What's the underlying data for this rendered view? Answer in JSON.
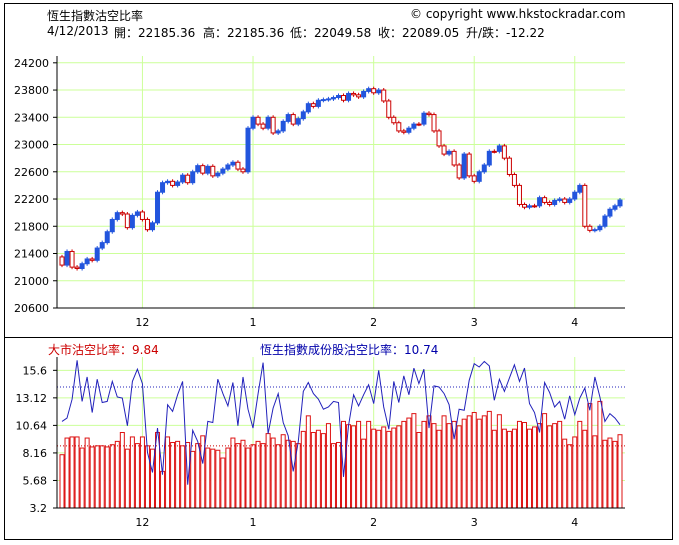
{
  "header": {
    "title": "恆生指數沽空比率",
    "copyright": "© copyright www.hkstockradar.com",
    "date": "4/12/2013",
    "open": "開：22185.36",
    "high": "高：22185.36",
    "low": "低：22049.58",
    "close": "收：22089.05",
    "change": "升/跌：-12.22"
  },
  "subheader": {
    "market_label": "大市沽空比率：9.84",
    "hsi_label": "恆生指數成份股沽空比率：10.74"
  },
  "colors": {
    "up": "#cc0000",
    "down": "#2255dd",
    "bar": "#dd1111",
    "line": "#2222bb",
    "grid": "#ccff99"
  },
  "chart_data": [
    {
      "type": "candlestick",
      "yticks": [
        20600,
        21000,
        21400,
        21800,
        22200,
        22600,
        23000,
        23400,
        23800,
        24200
      ],
      "ylim": [
        20600,
        24300
      ],
      "xtick_labels": [
        "12",
        "1",
        "2",
        "3",
        "4"
      ],
      "xtick_index": [
        16,
        38,
        62,
        82,
        102
      ],
      "n": 112,
      "close": [
        21350,
        21230,
        21430,
        21200,
        21180,
        21250,
        21320,
        21300,
        21480,
        21560,
        21720,
        21900,
        22000,
        21980,
        21780,
        21960,
        22010,
        21900,
        21750,
        21850,
        22300,
        22440,
        22460,
        22400,
        22450,
        22550,
        22440,
        22600,
        22690,
        22580,
        22680,
        22540,
        22580,
        22640,
        22700,
        22740,
        22640,
        22600,
        23240,
        23400,
        23300,
        23240,
        23400,
        23170,
        23200,
        23340,
        23440,
        23300,
        23380,
        23480,
        23600,
        23560,
        23650,
        23660,
        23670,
        23690,
        23720,
        23650,
        23750,
        23730,
        23700,
        23780,
        23820,
        23760,
        23800,
        23640,
        23400,
        23320,
        23200,
        23180,
        23240,
        23300,
        23300,
        23460,
        23440,
        23200,
        22980,
        22860,
        22900,
        22700,
        22510,
        22860,
        22540,
        22460,
        22600,
        22700,
        22900,
        22900,
        22980,
        22800,
        22560,
        22400,
        22120,
        22080,
        22100,
        22100,
        22220,
        22150,
        22120,
        22180,
        22200,
        22150,
        22200,
        22300,
        22400,
        21800,
        21740,
        21750,
        21800,
        21950,
        22050,
        22100
      ],
      "open": [
        21230,
        21430,
        21200,
        21180,
        21250,
        21320,
        21300,
        21480,
        21560,
        21720,
        21900,
        22000,
        21980,
        21780,
        21960,
        22010,
        21900,
        21750,
        21850,
        22300,
        22440,
        22460,
        22400,
        22450,
        22550,
        22440,
        22600,
        22690,
        22580,
        22680,
        22540,
        22580,
        22640,
        22700,
        22740,
        22640,
        22600,
        23240,
        23400,
        23300,
        23240,
        23400,
        23170,
        23200,
        23340,
        23440,
        23300,
        23380,
        23480,
        23600,
        23560,
        23650,
        23660,
        23670,
        23690,
        23720,
        23650,
        23750,
        23730,
        23700,
        23780,
        23820,
        23760,
        23800,
        23640,
        23400,
        23320,
        23200,
        23180,
        23240,
        23300,
        23300,
        23460,
        23440,
        23200,
        22980,
        22860,
        22900,
        22700,
        22510,
        22860,
        22540,
        22460,
        22600,
        22700,
        22900,
        22900,
        22980,
        22800,
        22560,
        22400,
        22120,
        22080,
        22100,
        22100,
        22220,
        22150,
        22120,
        22180,
        22200,
        22150,
        22200,
        22300,
        22400,
        21800,
        21740,
        21750,
        21800,
        21950,
        22050,
        22100,
        22185
      ]
    },
    {
      "type": "bar+line",
      "yticks": [
        3.2,
        5.68,
        8.16,
        10.64,
        13.12,
        15.6
      ],
      "ylim": [
        3.2,
        16.8
      ],
      "reference_lines": [
        14.1,
        8.8
      ],
      "xtick_labels": [
        "12",
        "1",
        "2",
        "3",
        "4"
      ],
      "series": [
        {
          "name": "大市沽空比率",
          "type": "bar",
          "values": [
            8.0,
            9.5,
            9.6,
            9.6,
            8.6,
            9.5,
            8.7,
            8.8,
            8.8,
            8.7,
            8.9,
            9.2,
            10.0,
            8.5,
            9.6,
            9.0,
            9.6,
            8.8,
            8.5,
            10.0,
            6.5,
            9.6,
            9.1,
            9.2,
            8.8,
            9.1,
            8.3,
            9.0,
            9.7,
            8.6,
            8.5,
            8.4,
            7.7,
            8.6,
            9.5,
            9.0,
            9.3,
            8.6,
            8.9,
            9.2,
            9.0,
            9.9,
            9.5,
            8.9,
            9.8,
            9.3,
            9.2,
            9.0,
            10.1,
            11.5,
            10.0,
            10.2,
            9.9,
            10.8,
            9.0,
            9.1,
            11.0,
            10.7,
            10.6,
            11.0,
            9.4,
            11.0,
            10.3,
            10.2,
            10.5,
            10.1,
            10.4,
            10.6,
            11.0,
            11.3,
            11.7,
            10.0,
            11.0,
            11.5,
            10.8,
            10.2,
            11.5,
            10.8,
            11.0,
            10.6,
            11.2,
            11.5,
            11.8,
            11.2,
            11.5,
            11.9,
            10.2,
            11.6,
            10.3,
            10.1,
            10.3,
            11.0,
            10.9,
            10.3,
            10.5,
            10.8,
            11.7,
            10.6,
            10.8,
            11.0,
            9.4,
            8.9,
            9.6,
            11.0,
            10.2,
            12.6,
            9.7,
            12.8,
            9.3,
            9.5,
            9.2,
            9.8
          ]
        },
        {
          "name": "恆生指數成份股沽空比率",
          "type": "line",
          "values": [
            11.0,
            11.3,
            13.0,
            16.5,
            12.8,
            15.0,
            11.8,
            14.8,
            12.7,
            12.8,
            14.6,
            13.2,
            13.1,
            10.6,
            14.6,
            15.7,
            14.4,
            8.2,
            6.4,
            10.4,
            6.2,
            12.5,
            11.9,
            13.4,
            14.6,
            5.3,
            10.2,
            9.2,
            7.2,
            11.0,
            10.9,
            14.8,
            13.5,
            12.4,
            14.5,
            10.6,
            15.0,
            12.1,
            10.4,
            13.5,
            16.3,
            9.9,
            12.2,
            13.5,
            10.9,
            9.7,
            6.5,
            9.2,
            13.7,
            14.5,
            13.5,
            13.0,
            12.1,
            12.3,
            12.8,
            12.7,
            6.0,
            10.6,
            13.4,
            12.4,
            13.4,
            14.3,
            12.6,
            15.6,
            12.3,
            10.3,
            14.6,
            12.7,
            15.1,
            13.4,
            15.8,
            14.4,
            15.7,
            10.4,
            14.2,
            14.1,
            13.5,
            12.5,
            9.4,
            12.1,
            12.0,
            14.7,
            16.2,
            15.9,
            16.4,
            16.0,
            12.9,
            14.8,
            13.7,
            14.9,
            16.1,
            14.6,
            15.8,
            12.6,
            11.8,
            10.0,
            14.5,
            13.6,
            12.3,
            12.8,
            11.2,
            13.3,
            11.6,
            13.1,
            14.0,
            12.0,
            15.0,
            13.2,
            11.0,
            11.7,
            11.3,
            10.7
          ]
        }
      ]
    }
  ]
}
